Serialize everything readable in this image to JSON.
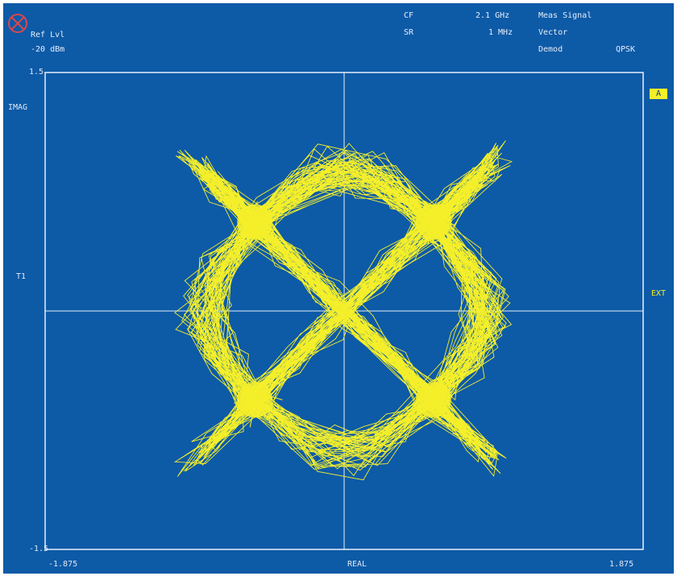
{
  "header": {
    "ref_lvl_label": "Ref Lvl",
    "ref_lvl_value": "-20 dBm",
    "cf_label": "CF",
    "cf_value": "2.1 GHz",
    "sr_label": "SR",
    "sr_value": "1 MHz",
    "meas_signal": "Meas Signal",
    "vector": "Vector",
    "demod_label": "Demod",
    "demod_value": "QPSK"
  },
  "side": {
    "trace_label": "T1",
    "trace_marker": "A",
    "ext_label": "EXT"
  },
  "colors": {
    "background": "#0d5aa7",
    "trace": "#f4ef2a",
    "grid": "#e8f0fa"
  },
  "chart_data": {
    "type": "scatter",
    "title": "",
    "xlabel": "REAL",
    "ylabel": "IMAG",
    "xlim": [
      -1.875,
      1.875
    ],
    "ylim": [
      -1.5,
      1.5
    ],
    "x_tick_labels": [
      "-1.875",
      "1.875"
    ],
    "y_tick_labels": [
      "1.5",
      "-1.5"
    ],
    "grid": "crosshair",
    "series": [
      {
        "values": [
          {
            "x": 0.56,
            "y": 0.56
          },
          {
            "x": -0.56,
            "y": 0.56
          },
          {
            "x": -0.56,
            "y": -0.56
          },
          {
            "x": 0.56,
            "y": -0.56
          }
        ]
      }
    ],
    "trace_spread": 0.22,
    "render": "vector trajectory connecting QPSK constellation points"
  }
}
